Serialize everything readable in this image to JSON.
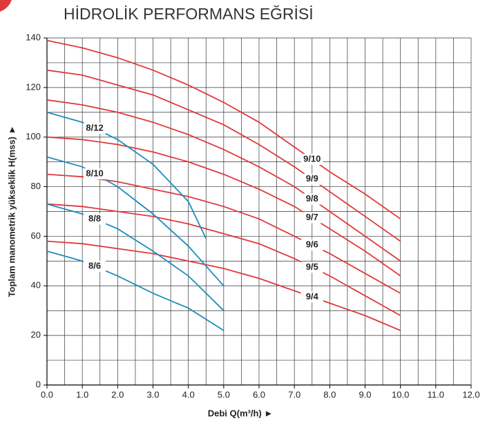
{
  "chart_data": {
    "type": "line",
    "title": "HİDROLİK PERFORMANS EĞRİSİ",
    "x_label": "Debi Q(m³/h) ►",
    "y_label": "Toplam manometrik yükseklik H(mss) ►",
    "xlim": [
      0,
      12
    ],
    "ylim": [
      0,
      140
    ],
    "xticks": [
      {
        "value": 0,
        "label": "0.0"
      },
      {
        "value": 1,
        "label": "1.0"
      },
      {
        "value": 2,
        "label": "2.0"
      },
      {
        "value": 3,
        "label": "3.0"
      },
      {
        "value": 4,
        "label": "4.0"
      },
      {
        "value": 5,
        "label": "5.0"
      },
      {
        "value": 6,
        "label": "6.0"
      },
      {
        "value": 7,
        "label": "7.0"
      },
      {
        "value": 8,
        "label": "8.0"
      },
      {
        "value": 9,
        "label": "9.0"
      },
      {
        "value": 10,
        "label": "10.0"
      },
      {
        "value": 11,
        "label": "11.0"
      },
      {
        "value": 12,
        "label": "12.0"
      }
    ],
    "yticks": [
      0,
      20,
      40,
      60,
      80,
      100,
      120,
      140
    ],
    "xminorticks": [
      0.5,
      1.5,
      2.5,
      3.5,
      4.5,
      5.5,
      6.5,
      7.5,
      8.5,
      9.5,
      10.5,
      11.5
    ],
    "yminorticks": [
      10,
      30,
      50,
      70,
      90,
      110,
      130
    ],
    "grid": true,
    "series": [
      {
        "name": "9/10",
        "color": "#e0383a",
        "x": [
          0,
          1,
          2,
          3,
          4,
          5,
          6,
          7,
          8,
          9,
          10
        ],
        "values": [
          139,
          136,
          132,
          127,
          121,
          114,
          106,
          96,
          86,
          77,
          67
        ]
      },
      {
        "name": "9/9",
        "color": "#e0383a",
        "x": [
          0,
          1,
          2,
          3,
          4,
          5,
          6,
          7,
          8,
          9,
          10
        ],
        "values": [
          127,
          125,
          121,
          117,
          111,
          105,
          97,
          88,
          78,
          68,
          58
        ]
      },
      {
        "name": "9/8",
        "color": "#e0383a",
        "x": [
          0,
          1,
          2,
          3,
          4,
          5,
          6,
          7,
          8,
          9,
          10
        ],
        "values": [
          115,
          113,
          110,
          106,
          101,
          95,
          88,
          80,
          70,
          60,
          50
        ]
      },
      {
        "name": "9/7",
        "color": "#e0383a",
        "x": [
          0,
          1,
          2,
          3,
          4,
          5,
          6,
          7,
          8,
          9,
          10
        ],
        "values": [
          100,
          99,
          97,
          94,
          90,
          85,
          79,
          72,
          63,
          54,
          44
        ]
      },
      {
        "name": "9/6",
        "color": "#e0383a",
        "x": [
          0,
          1,
          2,
          3,
          4,
          5,
          6,
          7,
          8,
          9,
          10
        ],
        "values": [
          85,
          84,
          82,
          79,
          76,
          72,
          67,
          60,
          53,
          45,
          37
        ]
      },
      {
        "name": "9/5",
        "color": "#e0383a",
        "x": [
          0,
          1,
          2,
          3,
          4,
          5,
          6,
          7,
          8,
          9,
          10
        ],
        "values": [
          73,
          72,
          70,
          68,
          65,
          61,
          57,
          51,
          44,
          36,
          28
        ]
      },
      {
        "name": "9/4",
        "color": "#e0383a",
        "x": [
          0,
          1,
          2,
          3,
          4,
          5,
          6,
          7,
          8,
          9,
          10
        ],
        "values": [
          58,
          57,
          55,
          53,
          50,
          47,
          43,
          38,
          33,
          28,
          22
        ]
      },
      {
        "name": "8/12",
        "color": "#1a8dbf",
        "x": [
          0,
          1,
          2,
          3,
          4,
          4.5
        ],
        "values": [
          110,
          106,
          99,
          89,
          74,
          59
        ]
      },
      {
        "name": "8/10",
        "color": "#1a8dbf",
        "x": [
          0,
          1,
          2,
          3,
          4,
          5
        ],
        "values": [
          92,
          88,
          80,
          69,
          56,
          40
        ]
      },
      {
        "name": "8/8",
        "color": "#1a8dbf",
        "x": [
          0,
          1,
          2,
          3,
          4,
          5
        ],
        "values": [
          73,
          69,
          63,
          54,
          44,
          30
        ]
      },
      {
        "name": "8/6",
        "color": "#1a8dbf",
        "x": [
          0,
          1,
          2,
          3,
          4,
          5
        ],
        "values": [
          54,
          50,
          44,
          37,
          31,
          22
        ]
      }
    ]
  }
}
